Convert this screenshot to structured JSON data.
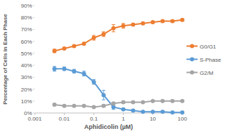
{
  "chart_data": {
    "type": "line",
    "x_label": "Aphidicolin (µM)",
    "y_label": "Percentage of Cells in Each Phase",
    "x": [
      0.00464,
      0.01,
      0.0215,
      0.0464,
      0.1,
      0.215,
      0.464,
      1,
      2.15,
      4.64,
      10,
      21.5,
      46.4,
      100
    ],
    "series": [
      {
        "name": "G0/G1",
        "color": "#ed7d31",
        "marker": "circle",
        "values": [
          52,
          54,
          56,
          58,
          63,
          66,
          71,
          73,
          74,
          75,
          76,
          77,
          77,
          78
        ],
        "errors": [
          1.5,
          1,
          1,
          1,
          2,
          2,
          3,
          2,
          1,
          1,
          1,
          1,
          1,
          1
        ]
      },
      {
        "name": "S-Phase",
        "color": "#5b9bd5",
        "marker": "circle",
        "values": [
          37,
          37,
          35,
          33,
          26,
          15,
          5,
          3,
          2,
          1,
          1,
          1,
          0.5,
          0.5
        ],
        "errors": [
          2,
          1.5,
          1.5,
          2,
          2,
          4,
          2,
          1,
          1,
          0.5,
          0.5,
          0.5,
          0.5,
          0.5
        ]
      },
      {
        "name": "G2/M",
        "color": "#a5a5a5",
        "marker": "circle",
        "values": [
          7,
          6,
          6,
          6,
          5,
          6,
          8,
          9,
          9,
          9,
          10,
          10,
          10,
          10
        ],
        "errors": [
          1,
          0.5,
          0.5,
          0.5,
          0.5,
          1,
          1,
          1,
          0.5,
          0.5,
          0.5,
          0.5,
          0.5,
          0.5
        ]
      }
    ],
    "xlim": [
      0.001,
      100
    ],
    "xticks": [
      0.001,
      0.01,
      0.1,
      1,
      10,
      100
    ],
    "ylim": [
      0,
      90
    ],
    "yticks": [
      {
        "value": 0,
        "label": "0%"
      },
      {
        "value": 10,
        "label": "10%"
      },
      {
        "value": 20,
        "label": "20%"
      },
      {
        "value": 30,
        "label": "30%"
      },
      {
        "value": 40,
        "label": "40%"
      },
      {
        "value": 50,
        "label": "50%"
      },
      {
        "value": 60,
        "label": "60%"
      },
      {
        "value": 70,
        "label": "70%"
      },
      {
        "value": 80,
        "label": "80%"
      },
      {
        "value": 90,
        "label": "90%"
      }
    ],
    "log": "x",
    "grid": false,
    "legend": "right"
  }
}
